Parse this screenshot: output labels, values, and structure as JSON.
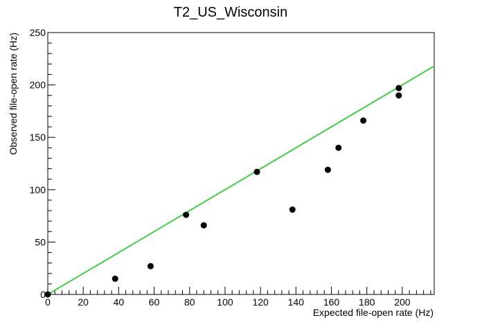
{
  "chart_data": {
    "type": "scatter",
    "title": "T2_US_Wisconsin",
    "xlabel": "Expected file-open rate (Hz)",
    "ylabel": "Observed file-open rate (Hz)",
    "xlim": [
      0,
      218
    ],
    "ylim": [
      0,
      250
    ],
    "x_ticks": [
      0,
      20,
      40,
      60,
      80,
      100,
      120,
      140,
      160,
      180,
      200
    ],
    "y_ticks": [
      0,
      50,
      100,
      150,
      200,
      250
    ],
    "grid": false,
    "legend": "none",
    "series": [
      {
        "marker": "filled-circle",
        "color": "#000000",
        "x": [
          0,
          38,
          58,
          78,
          88,
          118,
          138,
          158,
          164,
          178,
          198,
          198
        ],
        "y": [
          0,
          15,
          27,
          76,
          66,
          117,
          81,
          119,
          140,
          166,
          197,
          190
        ]
      }
    ],
    "reference_line": {
      "color": "#44cc44",
      "x": [
        0,
        218
      ],
      "y": [
        0,
        218
      ]
    }
  }
}
